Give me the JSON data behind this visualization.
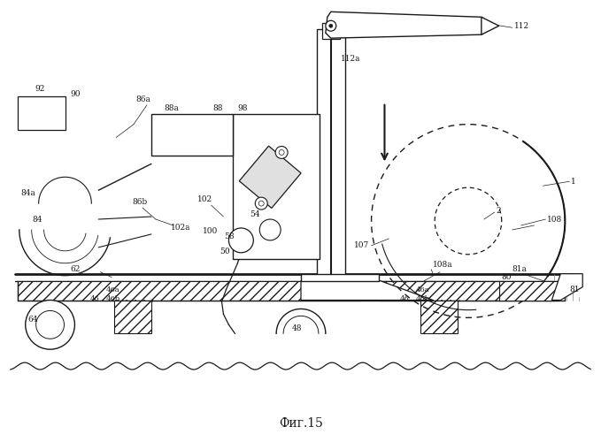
{
  "title": "Фиг.15",
  "background": "#ffffff",
  "lc": "#1a1a1a",
  "fig_width": 6.79,
  "fig_height": 5.0,
  "dpi": 100,
  "xlim": [
    0,
    679
  ],
  "ylim": [
    0,
    500
  ]
}
